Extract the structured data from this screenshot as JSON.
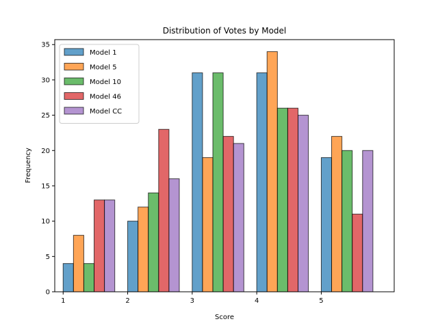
{
  "chart_data": {
    "type": "bar",
    "title": "Distribution of Votes by Model",
    "xlabel": "Score",
    "ylabel": "Frequency",
    "x": [
      1,
      2,
      3,
      4,
      5
    ],
    "xticks": [
      "1",
      "2",
      "3",
      "4",
      "5"
    ],
    "yticks": [
      "0",
      "5",
      "10",
      "15",
      "20",
      "25",
      "30",
      "35"
    ],
    "ylim": [
      0,
      35.7
    ],
    "xlim": [
      0.87,
      6.13
    ],
    "bar_width": 0.16,
    "grid": false,
    "legend_position": "top-left",
    "series": [
      {
        "name": "Model 1",
        "color": "#1f77b4",
        "values": [
          4,
          10,
          31,
          31,
          19
        ]
      },
      {
        "name": "Model 5",
        "color": "#ff7f0e",
        "values": [
          8,
          12,
          19,
          34,
          22
        ]
      },
      {
        "name": "Model 10",
        "color": "#2ca02c",
        "values": [
          4,
          14,
          31,
          26,
          20
        ]
      },
      {
        "name": "Model 46",
        "color": "#d62728",
        "values": [
          13,
          23,
          22,
          26,
          11
        ]
      },
      {
        "name": "Model CC",
        "color": "#9467bd",
        "values": [
          13,
          16,
          21,
          25,
          20
        ]
      }
    ]
  }
}
